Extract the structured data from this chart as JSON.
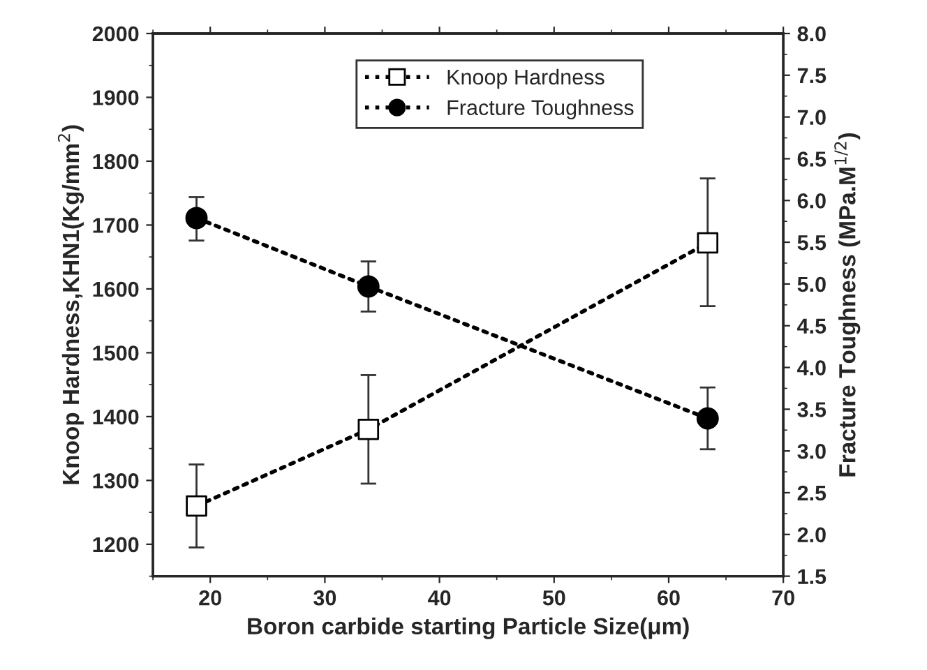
{
  "chart_data": {
    "type": "line",
    "xlabel": "Boron carbide starting Particle Size(μm)",
    "ylabel": "Knoop Hardness,KHN1(Kg/mm$^{2}$)",
    "y2label": "Fracture Toughness (MPa.M$^{1/2}$)",
    "x": [
      18.8,
      33.8,
      63.4
    ],
    "xlim": [
      15,
      70
    ],
    "xticks": [
      20,
      30,
      40,
      50,
      60,
      70
    ],
    "ylim": [
      1150,
      2000
    ],
    "yticks": [
      1200,
      1300,
      1400,
      1500,
      1600,
      1700,
      1800,
      1900,
      2000
    ],
    "y2lim": [
      1.5,
      8.0
    ],
    "y2ticks": [
      {
        "value": 1.5,
        "label": "1.5"
      },
      {
        "value": 2.0,
        "label": "2.0"
      },
      {
        "value": 2.5,
        "label": "2.5"
      },
      {
        "value": 3.0,
        "label": "3.0"
      },
      {
        "value": 3.5,
        "label": "3.5"
      },
      {
        "value": 4.0,
        "label": "4.0"
      },
      {
        "value": 4.5,
        "label": "4.5"
      },
      {
        "value": 5.0,
        "label": "5.0"
      },
      {
        "value": 5.5,
        "label": "5.5"
      },
      {
        "value": 6.0,
        "label": "6.0"
      },
      {
        "value": 6.5,
        "label": "6.5"
      },
      {
        "value": 7.0,
        "label": "7.0"
      },
      {
        "value": 7.5,
        "label": "7.5"
      },
      {
        "value": 8.0,
        "label": "8.0"
      }
    ],
    "series": [
      {
        "name": "Knoop Hardness",
        "color": "#000000",
        "marker": "square",
        "values": [
          1260,
          1380,
          1672
        ],
        "errors": [
          [
            1195,
            1325
          ],
          [
            1295,
            1465
          ],
          [
            1573,
            1773
          ]
        ]
      },
      {
        "name": "Fracture Toughness",
        "color": "#000000",
        "marker": "circle",
        "axis": "y2",
        "values": [
          5.79,
          4.97,
          3.39
        ],
        "errors": [
          [
            5.52,
            6.04
          ],
          [
            4.67,
            5.27
          ],
          [
            3.02,
            3.76
          ]
        ]
      }
    ],
    "line_style": "dotted",
    "grid": false,
    "legend": "top"
  }
}
